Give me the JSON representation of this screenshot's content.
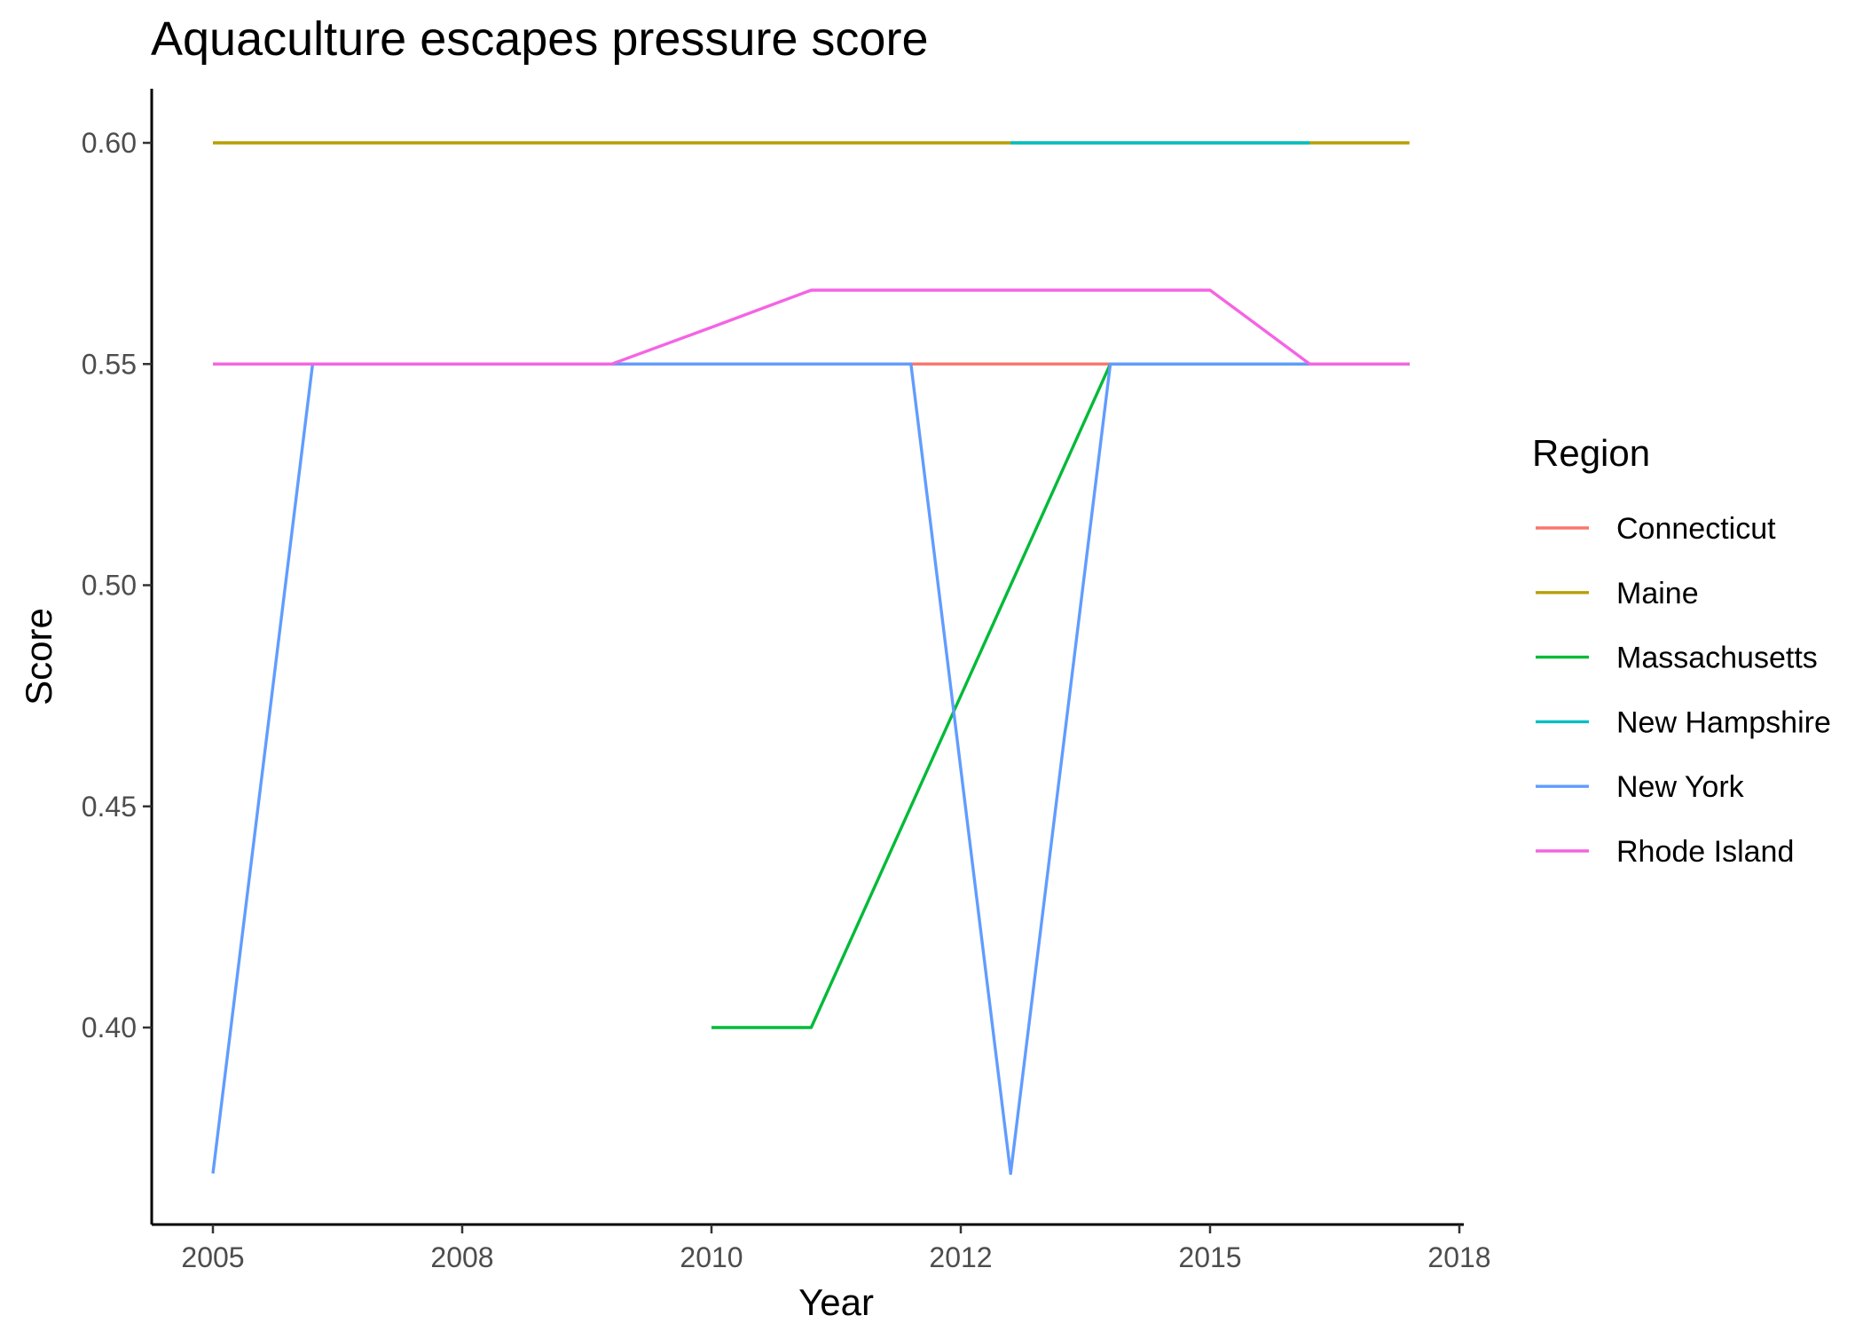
{
  "chart_data": {
    "type": "line",
    "title": "Aquaculture escapes pressure score",
    "xlabel": "Year",
    "ylabel": "Score",
    "xlim": [
      2005,
      2017.5
    ],
    "ylim": [
      0.363,
      0.612
    ],
    "x_ticks": [
      {
        "value": 2005,
        "label": "2005"
      },
      {
        "value": 2007.5,
        "label": "2008"
      },
      {
        "value": 2010,
        "label": "2010"
      },
      {
        "value": 2012.5,
        "label": "2012"
      },
      {
        "value": 2015,
        "label": "2015"
      },
      {
        "value": 2017.5,
        "label": "2018"
      }
    ],
    "y_ticks": [
      {
        "value": 0.4,
        "label": "0.40"
      },
      {
        "value": 0.45,
        "label": "0.45"
      },
      {
        "value": 0.5,
        "label": "0.50"
      },
      {
        "value": 0.55,
        "label": "0.55"
      },
      {
        "value": 0.6,
        "label": "0.60"
      }
    ],
    "grid": false,
    "legend_position": "right",
    "legend_title": "Region",
    "series": [
      {
        "name": "Connecticut",
        "color": "#F8766D",
        "x": [
          2005,
          2006,
          2007,
          2008,
          2009,
          2010,
          2011,
          2012,
          2013,
          2014,
          2015,
          2016,
          2017
        ],
        "y": [
          0.55,
          0.55,
          0.55,
          0.55,
          0.55,
          0.55,
          0.55,
          0.55,
          0.55,
          0.55,
          0.55,
          0.55,
          0.55
        ]
      },
      {
        "name": "Maine",
        "color": "#B79F00",
        "x": [
          2005,
          2006,
          2007,
          2008,
          2009,
          2010,
          2011,
          2012,
          2013,
          2014,
          2015,
          2016,
          2017
        ],
        "y": [
          0.6,
          0.6,
          0.6,
          0.6,
          0.6,
          0.6,
          0.6,
          0.6,
          0.6,
          0.6,
          0.6,
          0.6,
          0.6
        ]
      },
      {
        "name": "Massachusetts",
        "color": "#00BA38",
        "x": [
          2010,
          2011,
          2012,
          2013,
          2014,
          2015,
          2016,
          2017
        ],
        "y": [
          0.4,
          0.4,
          0.45,
          0.5,
          0.55,
          0.55,
          0.55,
          0.55
        ]
      },
      {
        "name": "New Hampshire",
        "color": "#00BFC4",
        "x": [
          2013,
          2014,
          2015,
          2016
        ],
        "y": [
          0.6,
          0.6,
          0.6,
          0.6
        ]
      },
      {
        "name": "New York",
        "color": "#619CFF",
        "x": [
          2005,
          2006,
          2007,
          2008,
          2009,
          2010,
          2011,
          2012,
          2013,
          2014,
          2015,
          2016,
          2017
        ],
        "y": [
          0.367,
          0.55,
          0.55,
          0.55,
          0.55,
          0.55,
          0.55,
          0.55,
          0.367,
          0.55,
          0.55,
          0.55,
          0.55
        ]
      },
      {
        "name": "Rhode Island",
        "color": "#F564E3",
        "x": [
          2005,
          2006,
          2007,
          2008,
          2009,
          2010,
          2011,
          2012,
          2013,
          2014,
          2015,
          2016,
          2017
        ],
        "y": [
          0.55,
          0.55,
          0.55,
          0.55,
          0.55,
          0.5583,
          0.5667,
          0.5667,
          0.5667,
          0.5667,
          0.5667,
          0.55,
          0.55
        ]
      }
    ]
  }
}
